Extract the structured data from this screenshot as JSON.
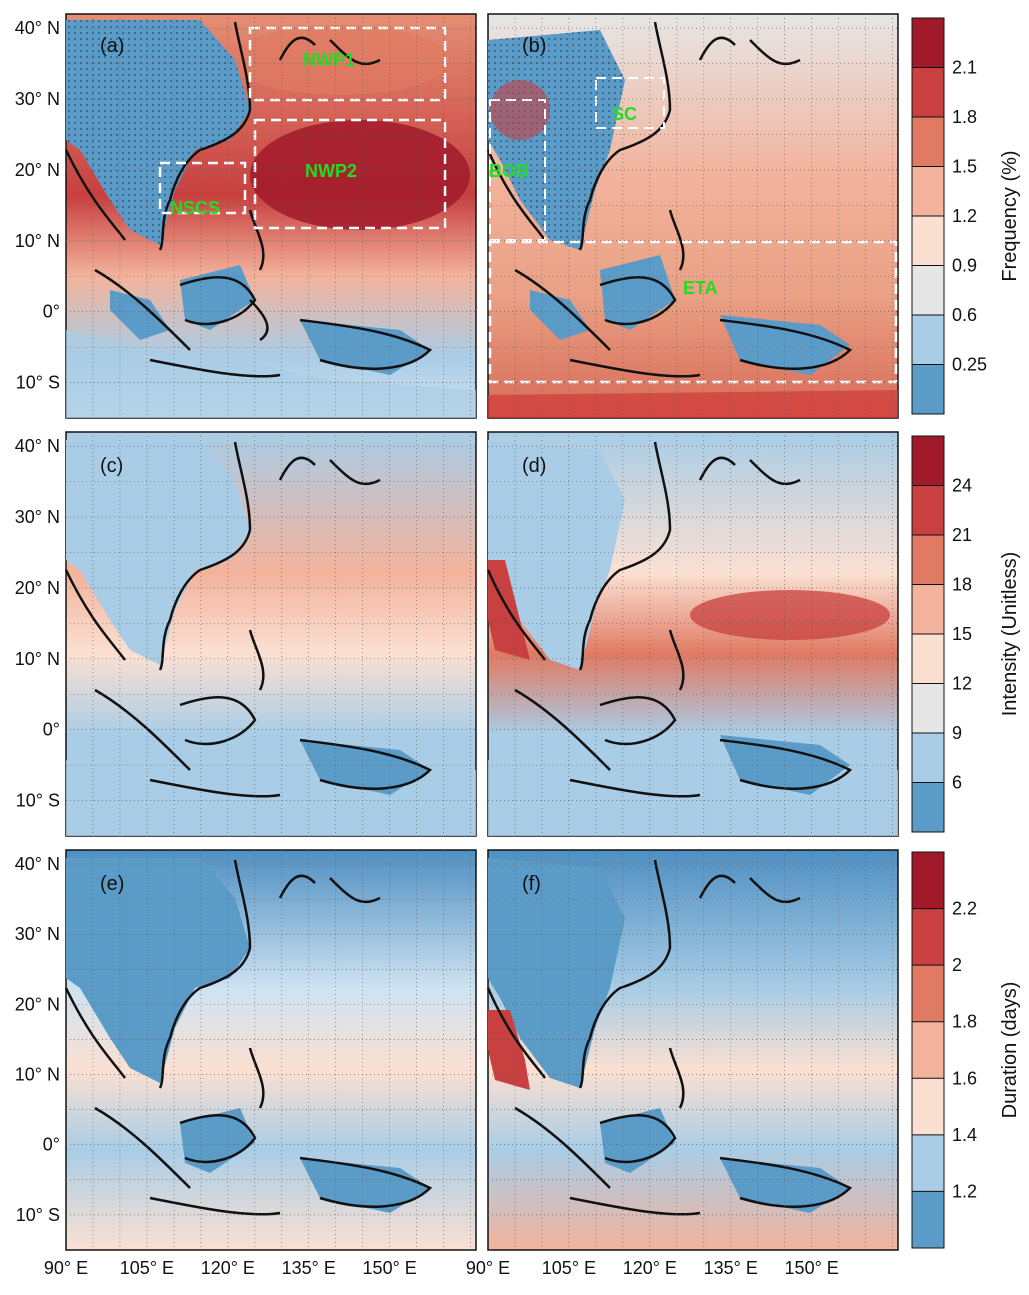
{
  "axes": {
    "lat_labels": [
      "40° N",
      "30° N",
      "20° N",
      "10° N",
      "0°",
      "10° S"
    ],
    "lon_labels": [
      "90° E",
      "105° E",
      "120° E",
      "135° E",
      "150° E"
    ],
    "lat_values": [
      40,
      30,
      20,
      10,
      0,
      -10
    ],
    "lon_values": [
      90,
      105,
      120,
      135,
      150
    ]
  },
  "panels": [
    {
      "letter": "(a)"
    },
    {
      "letter": "(b)"
    },
    {
      "letter": "(c)"
    },
    {
      "letter": "(d)"
    },
    {
      "letter": "(e)"
    },
    {
      "letter": "(f)"
    }
  ],
  "regions": {
    "NWP1": "NWP1",
    "NWP2": "NWP2",
    "NSCS": "NSCS",
    "SC": "SC",
    "BOB": "BOB",
    "ETA": "ETA"
  },
  "colorbars": [
    {
      "title": "Frequency (%)",
      "ticks": [
        "2.1",
        "1.8",
        "1.5",
        "1.2",
        "0.9",
        "0.6",
        "0.25"
      ],
      "colors": [
        "#a11a2a",
        "#c8403f",
        "#e07a63",
        "#f3b39c",
        "#fbe0d2",
        "#e6e6e6",
        "#a9cde6",
        "#5b9bc8"
      ]
    },
    {
      "title": "Intensity (Unitless)",
      "ticks": [
        "24",
        "21",
        "18",
        "15",
        "12",
        "9",
        "6"
      ],
      "colors": [
        "#a11a2a",
        "#c8403f",
        "#e07a63",
        "#f3b39c",
        "#fbe0d2",
        "#e6e6e6",
        "#a9cde6",
        "#5b9bc8"
      ]
    },
    {
      "title": "Duration (days)",
      "ticks": [
        "2.2",
        "2",
        "1.8",
        "1.6",
        "1.4",
        "1.2"
      ],
      "colors": [
        "#a11a2a",
        "#c8403f",
        "#e07a63",
        "#f3b39c",
        "#fbe0d2",
        "#a9cde6",
        "#5b9bc8"
      ]
    }
  ],
  "palette": {
    "land_dark": "#4a86b8",
    "sea_warm": "#e9967a",
    "box_color": "#ffffff",
    "label_green": "#22dd22"
  }
}
